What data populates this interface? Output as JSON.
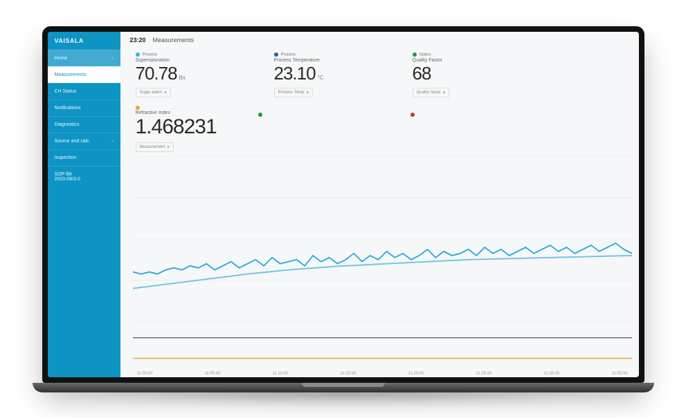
{
  "brand": "VAISALA",
  "header": {
    "time": "23:20",
    "title": "Measurements"
  },
  "sidebar": {
    "home": "Home",
    "items": [
      {
        "label": "Measurements",
        "active": true
      },
      {
        "label": "CH Status"
      },
      {
        "label": "Notifications"
      },
      {
        "label": "Diagnostics"
      },
      {
        "label": "Source and calc.",
        "chev": true
      },
      {
        "label": "Inspection"
      },
      {
        "label": "SOP file\n2023-08/3.0"
      }
    ]
  },
  "metrics": [
    {
      "dotColor": "#2ab5e0",
      "top": "Process",
      "label": "Supersaturation",
      "value": "70.78",
      "unit": "Bx",
      "foot": "Sugar alarm"
    },
    {
      "dotColor": "#2e5aac",
      "top": "Process",
      "label": "Process Temperature",
      "value": "23.10",
      "unit": "°C",
      "foot": "Process Temp"
    },
    {
      "dotColor": "#1c9b4a",
      "top": "Status",
      "label": "Quality Factor",
      "value": "68",
      "unit": "",
      "foot": "Quality factor"
    }
  ],
  "refractive": {
    "dotColor": "#e8a33c",
    "label": "Refractive Index",
    "value": "1.468231",
    "foot": "Measurement"
  },
  "indicators": [
    {
      "dotColor": "#1c9b4a"
    },
    {
      "dotColor": "#c0392b"
    }
  ],
  "chart": {
    "colors": {
      "series1": "#2aa7d4",
      "series2": "#6ec3e0",
      "baseline": "#555555",
      "bottom": "#e8a33c",
      "grid": "#eeeeee",
      "axisText": "#999999"
    },
    "ylim": [
      0,
      100
    ],
    "series1_y": [
      44,
      43,
      44,
      43,
      45,
      46,
      45,
      47,
      46,
      48,
      45,
      47,
      49,
      46,
      48,
      50,
      47,
      51,
      48,
      49,
      50,
      47,
      52,
      49,
      51,
      48,
      50,
      53,
      49,
      52,
      50,
      54,
      51,
      53,
      50,
      52,
      55,
      51,
      54,
      52,
      53,
      55,
      52,
      56,
      53,
      55,
      52,
      54,
      56,
      53,
      55,
      57,
      54,
      56,
      53,
      55,
      57,
      54,
      56,
      58,
      55,
      53
    ],
    "series2_y": [
      36,
      36.5,
      37,
      37.5,
      38,
      38.5,
      39,
      39.5,
      40,
      40.5,
      41,
      41.5,
      42,
      42.5,
      43,
      43.4,
      43.8,
      44.2,
      44.6,
      45,
      45.3,
      45.6,
      45.9,
      46.2,
      46.5,
      46.8,
      47,
      47.2,
      47.4,
      47.6,
      47.8,
      48,
      48.2,
      48.4,
      48.6,
      48.8,
      49,
      49.2,
      49.4,
      49.6,
      49.8,
      50,
      50.1,
      50.2,
      50.3,
      50.4,
      50.5,
      50.6,
      50.7,
      50.8,
      50.9,
      51,
      51.1,
      51.2,
      51.3,
      51.4,
      51.5,
      51.6,
      51.7,
      51.8,
      51.9,
      52
    ],
    "baseline_y": 12,
    "bottom_y": 2,
    "xticks": [
      "11:00:00",
      "11:05:00",
      "11:10:00",
      "11:15:00",
      "11:20:00",
      "11:25:00",
      "11:30:00",
      "11:35:00"
    ]
  }
}
